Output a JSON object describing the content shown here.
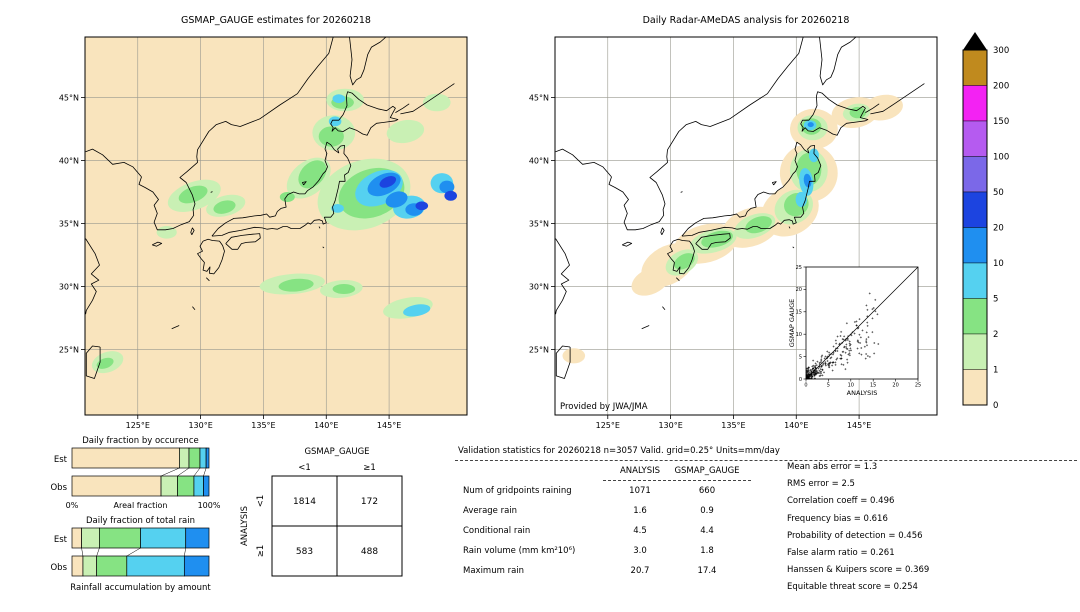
{
  "chart_data": [
    {
      "id": "gsmap_map",
      "type": "heatmap",
      "title": "GSMAP_GAUGE estimates for 20260218",
      "background_color": "#f9e4bd",
      "x_ticks": {
        "values": [
          125,
          130,
          135,
          140,
          145
        ],
        "labels": [
          "125°E",
          "130°E",
          "135°E",
          "140°E",
          "145°E"
        ]
      },
      "y_ticks": {
        "values": [
          45,
          40,
          35,
          30,
          25
        ],
        "labels": [
          "45°N",
          "40°N",
          "35°N",
          "30°N",
          "25°N"
        ]
      },
      "lon_range": [
        120.8,
        151.2
      ],
      "lat_range": [
        19.8,
        49.8
      ],
      "units": "mm/day",
      "blob_format": "[lon,lat,rx_deg,ry_deg,rotation_deg,intensity_bin_index]",
      "blobs": [
        [
          129.5,
          37.2,
          2.2,
          1.1,
          -20,
          1
        ],
        [
          132.0,
          36.4,
          1.6,
          0.8,
          -15,
          1
        ],
        [
          127.3,
          34.3,
          0.8,
          0.5,
          0,
          1
        ],
        [
          138.6,
          38.6,
          2.0,
          1.3,
          -40,
          1
        ],
        [
          140.6,
          42.2,
          1.7,
          1.4,
          0,
          1
        ],
        [
          141.5,
          44.8,
          1.5,
          0.9,
          0,
          1
        ],
        [
          143.0,
          37.3,
          3.8,
          2.7,
          -20,
          1
        ],
        [
          146.3,
          42.3,
          1.5,
          0.9,
          -10,
          1
        ],
        [
          137.3,
          30.2,
          2.6,
          0.8,
          -5,
          1
        ],
        [
          141.2,
          29.8,
          1.7,
          0.7,
          -5,
          1
        ],
        [
          146.5,
          28.3,
          2.0,
          0.8,
          -10,
          1
        ],
        [
          122.6,
          24.0,
          1.3,
          0.8,
          -20,
          1
        ],
        [
          148.8,
          44.6,
          1.1,
          0.7,
          0,
          1
        ],
        [
          129.4,
          37.3,
          1.2,
          0.6,
          -20,
          2
        ],
        [
          131.9,
          36.3,
          0.9,
          0.5,
          -15,
          2
        ],
        [
          138.9,
          38.9,
          1.3,
          0.9,
          -45,
          2
        ],
        [
          140.4,
          41.9,
          1.0,
          0.8,
          0,
          2
        ],
        [
          141.3,
          44.6,
          0.9,
          0.5,
          0,
          2
        ],
        [
          143.6,
          37.4,
          2.7,
          1.9,
          -20,
          2
        ],
        [
          136.9,
          37.1,
          0.6,
          0.4,
          0,
          2
        ],
        [
          137.6,
          30.1,
          1.4,
          0.5,
          -5,
          2
        ],
        [
          141.4,
          29.8,
          0.9,
          0.4,
          0,
          2
        ],
        [
          122.4,
          23.9,
          0.7,
          0.4,
          -20,
          2
        ],
        [
          144.2,
          37.8,
          2.0,
          1.3,
          -25,
          3
        ],
        [
          146.6,
          36.3,
          1.3,
          0.9,
          -10,
          3
        ],
        [
          140.9,
          36.2,
          0.5,
          0.35,
          0,
          3
        ],
        [
          140.7,
          43.1,
          0.5,
          0.4,
          0,
          3
        ],
        [
          141.0,
          44.9,
          0.5,
          0.35,
          0,
          3
        ],
        [
          147.2,
          28.1,
          1.1,
          0.45,
          -10,
          3
        ],
        [
          149.2,
          38.2,
          0.9,
          0.8,
          0,
          3
        ],
        [
          144.6,
          38.1,
          1.4,
          0.8,
          -25,
          4
        ],
        [
          145.6,
          36.9,
          0.9,
          0.6,
          -20,
          4
        ],
        [
          147.0,
          36.1,
          0.7,
          0.5,
          0,
          4
        ],
        [
          149.6,
          37.9,
          0.6,
          0.5,
          0,
          4
        ],
        [
          144.9,
          38.3,
          0.7,
          0.4,
          -25,
          5
        ],
        [
          147.6,
          36.4,
          0.5,
          0.35,
          0,
          5
        ],
        [
          149.9,
          37.2,
          0.5,
          0.4,
          0,
          5
        ]
      ]
    },
    {
      "id": "radar_map",
      "type": "heatmap",
      "title": "Daily Radar-AMeDAS analysis for 20260218",
      "credit": "Provided by JWA/JMA",
      "background_color": "#ffffff",
      "has_inset": true,
      "x_ticks": {
        "values": [
          125,
          130,
          135,
          140,
          145
        ],
        "labels": [
          "125°E",
          "130°E",
          "135°E",
          "140°E",
          "145°E"
        ]
      },
      "y_ticks": {
        "values": [
          45,
          40,
          35,
          30,
          25
        ],
        "labels": [
          "45°N",
          "40°N",
          "35°N",
          "30°N",
          "25°N"
        ]
      },
      "lon_range": [
        120.8,
        151.2
      ],
      "lat_range": [
        19.8,
        49.8
      ],
      "units": "mm/day",
      "blob_format": "[lon,lat,rx_deg,ry_deg,rotation_deg,intensity_bin_index]",
      "blobs": [
        [
          129.8,
          31.7,
          2.3,
          1.5,
          -30,
          0
        ],
        [
          128.4,
          30.4,
          1.6,
          1.0,
          -25,
          0
        ],
        [
          132.8,
          33.4,
          2.6,
          1.5,
          -15,
          0
        ],
        [
          136.4,
          34.7,
          2.4,
          1.5,
          -20,
          0
        ],
        [
          139.5,
          36.0,
          2.4,
          1.9,
          -30,
          0
        ],
        [
          141.0,
          39.0,
          2.3,
          2.3,
          0,
          0
        ],
        [
          141.4,
          42.5,
          1.9,
          1.6,
          0,
          0
        ],
        [
          144.7,
          43.8,
          1.9,
          1.2,
          -10,
          0
        ],
        [
          146.9,
          44.2,
          1.6,
          1.0,
          -10,
          0
        ],
        [
          122.3,
          24.5,
          0.9,
          0.6,
          0,
          0
        ],
        [
          130.9,
          31.9,
          1.4,
          0.9,
          -30,
          1
        ],
        [
          133.4,
          33.6,
          1.9,
          0.9,
          -15,
          1
        ],
        [
          136.7,
          34.8,
          1.7,
          0.9,
          -20,
          1
        ],
        [
          139.8,
          36.3,
          1.6,
          1.3,
          -30,
          1
        ],
        [
          141.0,
          39.2,
          1.5,
          1.7,
          0,
          1
        ],
        [
          141.3,
          42.6,
          1.2,
          1.0,
          0,
          1
        ],
        [
          144.8,
          43.8,
          1.1,
          0.7,
          -10,
          1
        ],
        [
          131.1,
          32.0,
          0.9,
          0.55,
          -30,
          2
        ],
        [
          133.7,
          33.75,
          1.3,
          0.6,
          -15,
          2
        ],
        [
          137.0,
          34.9,
          1.1,
          0.6,
          -20,
          2
        ],
        [
          140.0,
          36.5,
          1.0,
          0.9,
          -30,
          2
        ],
        [
          141.0,
          39.3,
          1.0,
          1.3,
          0,
          2
        ],
        [
          141.2,
          42.7,
          0.8,
          0.65,
          0,
          2
        ],
        [
          144.9,
          43.8,
          0.65,
          0.45,
          0,
          2
        ],
        [
          140.8,
          38.3,
          0.55,
          1.1,
          -8,
          3
        ],
        [
          140.4,
          36.9,
          0.45,
          0.6,
          0,
          3
        ],
        [
          141.1,
          42.8,
          0.5,
          0.4,
          0,
          3
        ],
        [
          141.4,
          40.4,
          0.4,
          0.55,
          0,
          3
        ],
        [
          140.9,
          38.4,
          0.3,
          0.55,
          -8,
          4
        ],
        [
          141.15,
          42.85,
          0.25,
          0.2,
          0,
          4
        ]
      ]
    },
    {
      "id": "colorbar",
      "type": "colorbar",
      "tick_labels": [
        "300",
        "200",
        "150",
        "100",
        "50",
        "20",
        "10",
        "5",
        "2",
        "1",
        "0"
      ],
      "bin_edges": [
        0,
        1,
        2,
        5,
        10,
        20,
        50,
        100,
        150,
        200,
        300
      ],
      "colors_top_to_bottom": [
        "#c08a1e",
        "#f322f3",
        "#b55bf0",
        "#7b68e8",
        "#1c44e0",
        "#1f8ff0",
        "#55d1f0",
        "#86e383",
        "#c9f0b4",
        "#f9e4bd"
      ],
      "overflow_color": "#000000"
    },
    {
      "id": "occurrence_chart",
      "type": "bar",
      "title": "Daily fraction by occurence",
      "categories": [
        "Est",
        "Obs"
      ],
      "axis_labels": {
        "left": "0%",
        "center": "Areal fraction",
        "right": "100%"
      },
      "bins_mm_per_day": [
        "0-1",
        "1-2",
        "2-5",
        "5-10",
        "10-20"
      ],
      "series": [
        {
          "name": "Est",
          "fractions": [
            0.784,
            0.07,
            0.08,
            0.045,
            0.021
          ]
        },
        {
          "name": "Obs",
          "fractions": [
            0.65,
            0.12,
            0.12,
            0.07,
            0.04
          ]
        }
      ]
    },
    {
      "id": "accumulation_chart",
      "type": "bar",
      "title": "Daily fraction of total rain",
      "footer": "Rainfall accumulation by amount",
      "categories": [
        "Est",
        "Obs"
      ],
      "bins_mm_per_day": [
        "0-1",
        "1-2",
        "2-5",
        "5-10",
        "10-20"
      ],
      "series": [
        {
          "name": "Est",
          "fractions": [
            0.07,
            0.13,
            0.3,
            0.33,
            0.17
          ]
        },
        {
          "name": "Obs",
          "fractions": [
            0.08,
            0.1,
            0.22,
            0.42,
            0.18
          ]
        }
      ]
    },
    {
      "id": "contingency_table",
      "type": "table",
      "col_group_label": "GSMAP_GAUGE",
      "row_group_label": "ANALYSIS",
      "col_labels": [
        "<1",
        "≥1"
      ],
      "row_labels": [
        "<1",
        "≥1"
      ],
      "cells": [
        [
          "1814",
          "172"
        ],
        [
          "583",
          "488"
        ]
      ]
    },
    {
      "id": "validation_stats",
      "type": "table",
      "title": "Validation statistics for 20260218  n=3057 Valid. grid=0.25° Units=mm/day",
      "columns": [
        "ANALYSIS",
        "GSMAP_GAUGE"
      ],
      "rows": [
        {
          "label": "Num of gridpoints raining",
          "values": [
            "1071",
            "660"
          ]
        },
        {
          "label": "Average rain",
          "values": [
            "1.6",
            "0.9"
          ]
        },
        {
          "label": "Conditional rain",
          "values": [
            "4.5",
            "4.4"
          ]
        },
        {
          "label": "Rain volume (mm km²10⁶)",
          "values": [
            "3.0",
            "1.8"
          ]
        },
        {
          "label": "Maximum rain",
          "values": [
            "20.7",
            "17.4"
          ]
        }
      ],
      "metrics": [
        {
          "label": "Mean abs error",
          "value": "1.3"
        },
        {
          "label": "RMS error",
          "value": "2.5"
        },
        {
          "label": "Correlation coeff",
          "value": "0.496"
        },
        {
          "label": "Frequency bias",
          "value": "0.616"
        },
        {
          "label": "Probability of detection",
          "value": "0.456"
        },
        {
          "label": "False alarm ratio",
          "value": "0.261"
        },
        {
          "label": "Hanssen & Kuipers score",
          "value": "0.369"
        },
        {
          "label": "Equitable threat score",
          "value": "0.254"
        }
      ]
    },
    {
      "id": "inset_scatter",
      "type": "scatter",
      "xlabel": "ANALYSIS",
      "ylabel": "GSMAP GAUGE",
      "xlim": [
        0,
        25
      ],
      "ylim": [
        0,
        25
      ],
      "tick_values": [
        0,
        5,
        10,
        15,
        20,
        25
      ],
      "marker": "+",
      "n_points": 300,
      "identity_line": true,
      "note": "dense cluster of points below ~10 mm/day"
    }
  ]
}
